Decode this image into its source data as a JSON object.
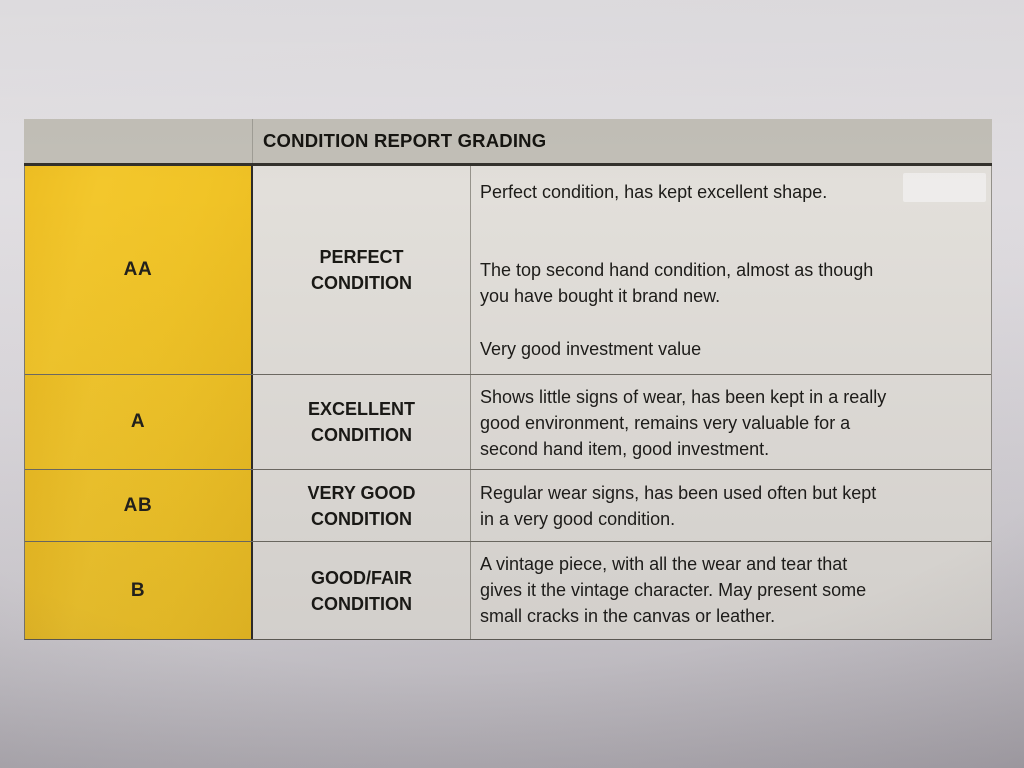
{
  "header": {
    "title": "CONDITION REPORT GRADING"
  },
  "rows": [
    {
      "code": "AA",
      "label": "PERFECT\nCONDITION",
      "paragraphs": [
        "Perfect condition, has kept excellent shape.",
        "The top second hand condition, almost as though\nyou have bought it brand new.",
        "Very good investment value"
      ]
    },
    {
      "code": "A",
      "label": "EXCELLENT\nCONDITION",
      "paragraphs": [
        "Shows little signs of wear, has been kept in a really\ngood environment, remains very valuable for a\nsecond hand item, good investment."
      ]
    },
    {
      "code": "AB",
      "label": "VERY GOOD\nCONDITION",
      "paragraphs": [
        "Regular wear signs, has been used often but kept\nin a very good condition."
      ]
    },
    {
      "code": "B",
      "label": "GOOD/FAIR\nCONDITION",
      "paragraphs": [
        "A vintage piece, with all the wear and tear that\ngives it the vintage character. May present some\nsmall cracks in the canvas or leather."
      ]
    }
  ],
  "colors": {
    "grade_cell_yellow": "#f1c427",
    "header_gray": "#c2bfb7",
    "cell_gray": "#e2dfda",
    "paper_light": "#e3e1e4",
    "paper_dark": "#a19ca2",
    "text": "#1c1b18"
  }
}
